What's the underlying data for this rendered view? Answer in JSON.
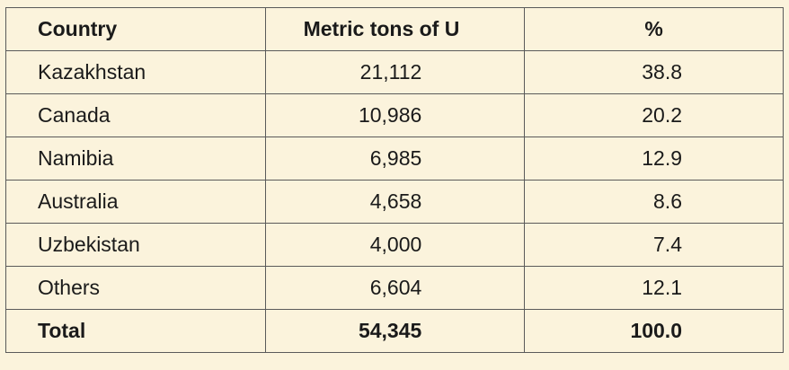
{
  "table": {
    "header": [
      "Country",
      "Metric tons of U",
      "%"
    ],
    "rows": [
      [
        "Kazakhstan",
        "21,112",
        "38.8"
      ],
      [
        "Canada",
        "10,986",
        "20.2"
      ],
      [
        "Namibia",
        "6,985",
        "12.9"
      ],
      [
        "Australia",
        "4,658",
        "8.6"
      ],
      [
        "Uzbekistan",
        "4,000",
        "7.4"
      ],
      [
        "Others",
        "6,604",
        "12.1"
      ]
    ],
    "total": [
      "Total",
      "54,345",
      "100.0"
    ]
  }
}
